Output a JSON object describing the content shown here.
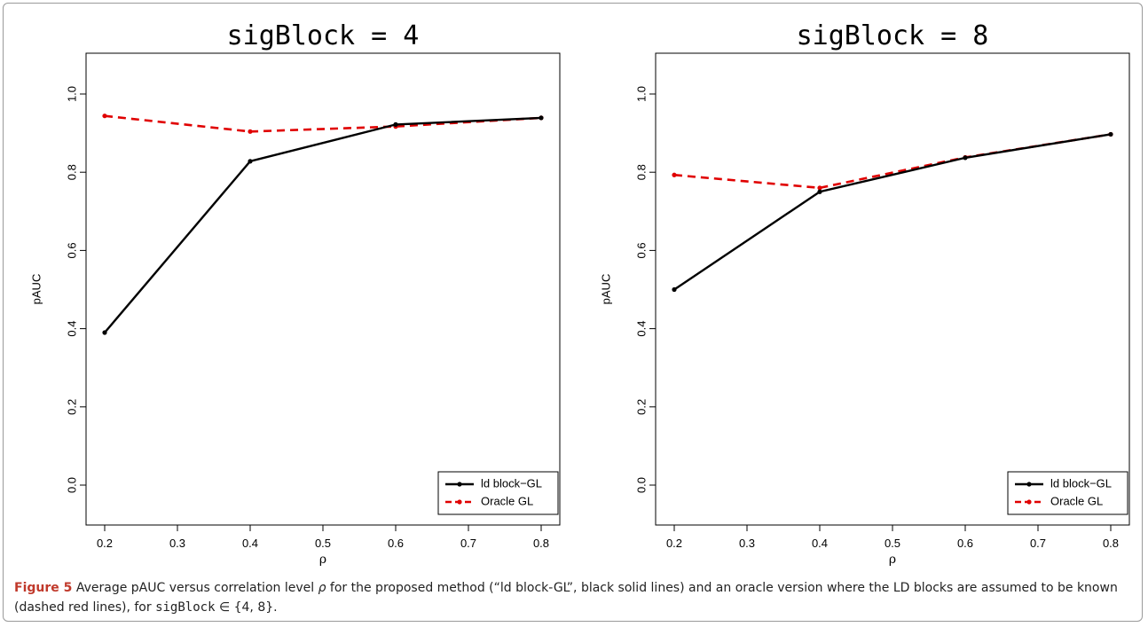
{
  "figure": {
    "label": "Figure 5",
    "caption_part1": " Average pAUC versus correlation level ",
    "caption_rho": "ρ",
    "caption_part2": " for the proposed method (“ld block-GL”, black solid lines) and an oracle version where the LD blocks are assumed to be known (dashed red lines), for ",
    "caption_code": "sigBlock",
    "caption_part3": " ∈ {4, 8}."
  },
  "chart_data": [
    {
      "type": "line",
      "title": "sigBlock = 4",
      "xlabel": "ρ",
      "ylabel": "pAUC",
      "x": [
        0.2,
        0.4,
        0.6,
        0.8
      ],
      "xticks": [
        "0.2",
        "0.3",
        "0.4",
        "0.5",
        "0.6",
        "0.7",
        "0.8"
      ],
      "yticks": [
        "0.0",
        "0.2",
        "0.4",
        "0.6",
        "0.8",
        "1.0"
      ],
      "xlim": [
        0.2,
        0.8
      ],
      "ylim": [
        0.0,
        1.0
      ],
      "grid": false,
      "legend_position": "bottom-right",
      "series": [
        {
          "name": "ld block−GL",
          "values": [
            0.39,
            0.828,
            0.922,
            0.939
          ],
          "color": "#000000",
          "style": "solid"
        },
        {
          "name": "Oracle GL",
          "values": [
            0.944,
            0.904,
            0.917,
            0.939
          ],
          "color": "#e00000",
          "style": "dashed"
        }
      ]
    },
    {
      "type": "line",
      "title": "sigBlock = 8",
      "xlabel": "ρ",
      "ylabel": "pAUC",
      "x": [
        0.2,
        0.4,
        0.6,
        0.8
      ],
      "xticks": [
        "0.2",
        "0.3",
        "0.4",
        "0.5",
        "0.6",
        "0.7",
        "0.8"
      ],
      "yticks": [
        "0.0",
        "0.2",
        "0.4",
        "0.6",
        "0.8",
        "1.0"
      ],
      "xlim": [
        0.2,
        0.8
      ],
      "ylim": [
        0.0,
        1.0
      ],
      "grid": false,
      "legend_position": "bottom-right",
      "series": [
        {
          "name": "ld block−GL",
          "values": [
            0.5,
            0.75,
            0.837,
            0.897
          ],
          "color": "#000000",
          "style": "solid"
        },
        {
          "name": "Oracle GL",
          "values": [
            0.793,
            0.76,
            0.838,
            0.897
          ],
          "color": "#e00000",
          "style": "dashed"
        }
      ]
    }
  ]
}
